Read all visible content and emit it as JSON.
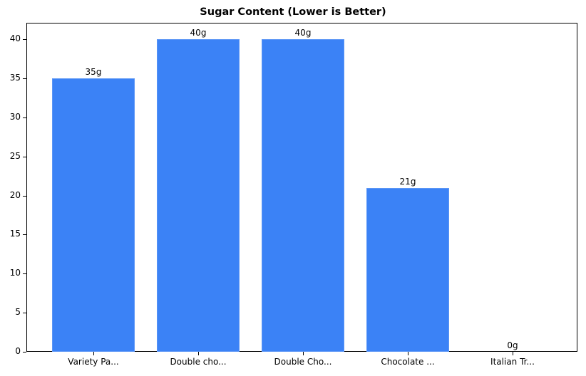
{
  "chart_data": {
    "type": "bar",
    "title": "Sugar Content (Lower is Better)",
    "xlabel": "",
    "ylabel": "",
    "categories": [
      "Variety Pa...",
      "Double cho...",
      "Double Cho...",
      "Chocolate ...",
      "Italian Tr..."
    ],
    "values": [
      35,
      40,
      40,
      21,
      0
    ],
    "value_labels": [
      "35g",
      "40g",
      "40g",
      "21g",
      "0g"
    ],
    "ylim": [
      0,
      42
    ],
    "yticks": [
      0,
      5,
      10,
      15,
      20,
      25,
      30,
      35,
      40
    ],
    "grid": false,
    "legend": null,
    "bar_color": "#3b82f6"
  }
}
